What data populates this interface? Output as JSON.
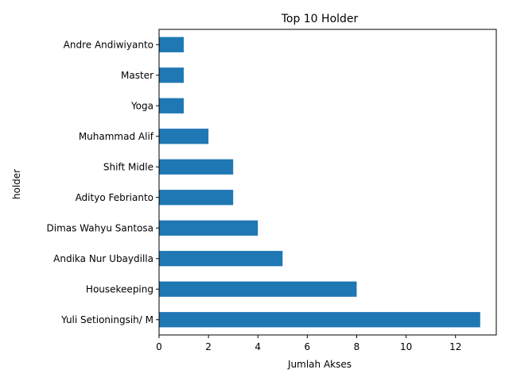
{
  "chart_data": {
    "type": "bar",
    "orientation": "horizontal",
    "title": "Top 10 Holder",
    "xlabel": "Jumlah Akses",
    "ylabel": "holder",
    "categories": [
      "Yuli Setioningsih/ M",
      "Housekeeping",
      "Andika Nur Ubaydilla",
      "Dimas Wahyu Santosa",
      "Adityo Febrianto",
      "Shift Midle",
      "Muhammad Alif",
      "Yoga",
      "Master",
      "Andre Andiwiyanto"
    ],
    "values": [
      13,
      8,
      5,
      4,
      3,
      3,
      2,
      1,
      1,
      1
    ],
    "xlim": [
      0,
      13.65
    ],
    "xticks": [
      "0",
      "2",
      "4",
      "6",
      "8",
      "10",
      "12"
    ],
    "bar_color": "#1f77b4",
    "grid": false,
    "legend": "none"
  }
}
